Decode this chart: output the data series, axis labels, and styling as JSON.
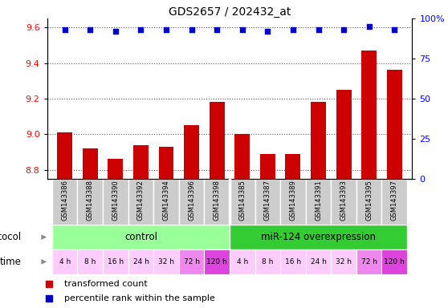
{
  "title": "GDS2657 / 202432_at",
  "samples": [
    "GSM143386",
    "GSM143388",
    "GSM143390",
    "GSM143392",
    "GSM143394",
    "GSM143396",
    "GSM143398",
    "GSM143385",
    "GSM143387",
    "GSM143389",
    "GSM143391",
    "GSM143393",
    "GSM143395",
    "GSM143397"
  ],
  "transformed_count": [
    9.01,
    8.92,
    8.86,
    8.94,
    8.93,
    9.05,
    9.18,
    9.0,
    8.89,
    8.89,
    9.18,
    9.25,
    9.47,
    9.36
  ],
  "percentile_rank_pct": [
    93,
    93,
    92,
    93,
    93,
    93,
    93,
    93,
    92,
    93,
    93,
    93,
    95,
    93
  ],
  "bar_color": "#cc0000",
  "dot_color": "#0000cc",
  "ylim_left": [
    8.75,
    9.65
  ],
  "ylim_right": [
    0,
    100
  ],
  "yticks_left": [
    8.8,
    9.0,
    9.2,
    9.4,
    9.6
  ],
  "yticks_right": [
    0,
    25,
    50,
    75,
    100
  ],
  "protocol_control_label": "control",
  "protocol_mir_label": "miR-124 overexpression",
  "protocol_control_color": "#99ff99",
  "protocol_mir_color": "#33cc33",
  "time_labels": [
    "4 h",
    "8 h",
    "16 h",
    "24 h",
    "32 h",
    "72 h",
    "120 h",
    "4 h",
    "8 h",
    "16 h",
    "24 h",
    "32 h",
    "72 h",
    "120 h"
  ],
  "time_colors": [
    "#ffccff",
    "#ffccff",
    "#ffccff",
    "#ffccff",
    "#ffccff",
    "#ee88ee",
    "#dd44dd",
    "#ffccff",
    "#ffccff",
    "#ffccff",
    "#ffccff",
    "#ffccff",
    "#ee88ee",
    "#dd44dd"
  ],
  "protocol_label": "protocol",
  "time_label": "time",
  "legend_bar_label": "transformed count",
  "legend_dot_label": "percentile rank within the sample",
  "sample_bg_color": "#cccccc",
  "grid_color": "#555555",
  "n_control": 7,
  "n_total": 14,
  "bar_bottom": 8.75
}
